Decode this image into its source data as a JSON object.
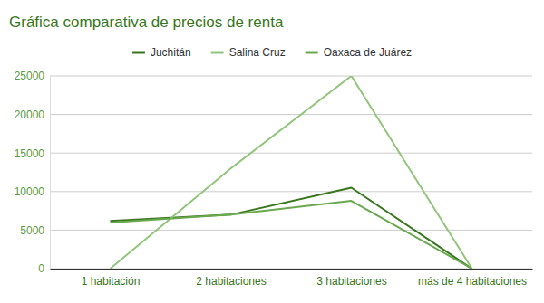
{
  "chart_data": {
    "type": "line",
    "title": "Gráfica comparativa de precios de renta",
    "categories": [
      "1 habitación",
      "2 habitaciones",
      "3 habitaciones",
      "más de 4 habitaciones"
    ],
    "series": [
      {
        "name": "Juchitán",
        "color": "#38761d",
        "values": [
          6200,
          7000,
          10500,
          0
        ]
      },
      {
        "name": "Salina Cruz",
        "color": "#93c47d",
        "values": [
          0,
          13000,
          25000,
          0
        ]
      },
      {
        "name": "Oaxaca de Juárez",
        "color": "#6aa84f",
        "values": [
          6000,
          7000,
          8800,
          0
        ]
      }
    ],
    "ylim": [
      0,
      25000
    ],
    "yticks": [
      0,
      5000,
      10000,
      15000,
      20000,
      25000
    ],
    "grid": true,
    "legend": "top"
  }
}
